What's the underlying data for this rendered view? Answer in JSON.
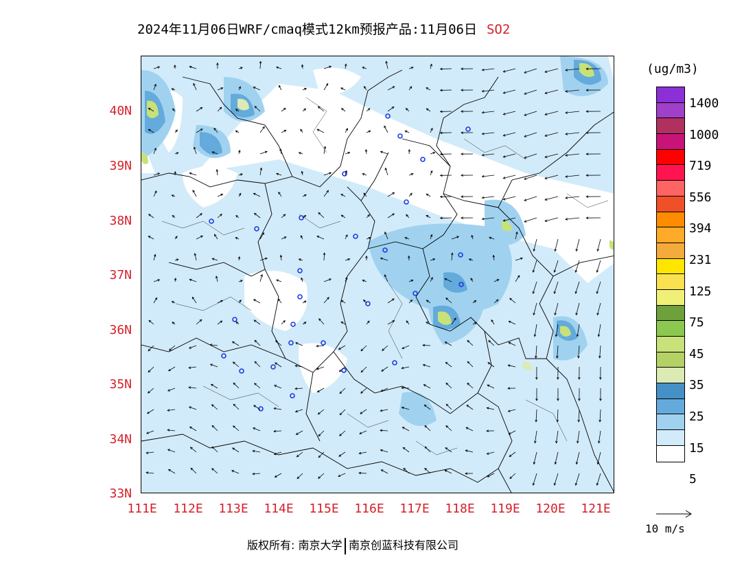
{
  "title": {
    "text": "2024年11月06日WRF/cmaq模式12km预报产品:11月06日",
    "pollutant": "SO2"
  },
  "map": {
    "lon_range": [
      111,
      121.4
    ],
    "lat_range": [
      33,
      41
    ],
    "lat_labels": [
      "40N",
      "39N",
      "38N",
      "37N",
      "36N",
      "35N",
      "34N",
      "33N"
    ],
    "lon_labels": [
      "111E",
      "112E",
      "113E",
      "114E",
      "115E",
      "116E",
      "117E",
      "118E",
      "119E",
      "120E",
      "121E"
    ]
  },
  "legend": {
    "unit": "(ug/m3)",
    "labels": [
      "1400",
      "1000",
      "719",
      "556",
      "394",
      "231",
      "125",
      "75",
      "45",
      "35",
      "25",
      "15",
      "5"
    ],
    "colors": [
      "#8b2fd6",
      "#a040c8",
      "#b03060",
      "#c81478",
      "#ff0000",
      "#ff1450",
      "#ff6464",
      "#f05028",
      "#ff8c00",
      "#ffaa28",
      "#f5aa3c",
      "#ffe600",
      "#fae150",
      "#f0f078",
      "#6ea03c",
      "#8cc850",
      "#c8e178",
      "#b4d264",
      "#dceab4",
      "#4690c8",
      "#64aadc",
      "#a0d2f0",
      "#d2ebfa",
      "#ffffff"
    ]
  },
  "vector_ref": {
    "label": "10 m/s"
  },
  "footer": {
    "left": "版权所有: 南京大学",
    "right": "南京创蓝科技有限公司"
  }
}
